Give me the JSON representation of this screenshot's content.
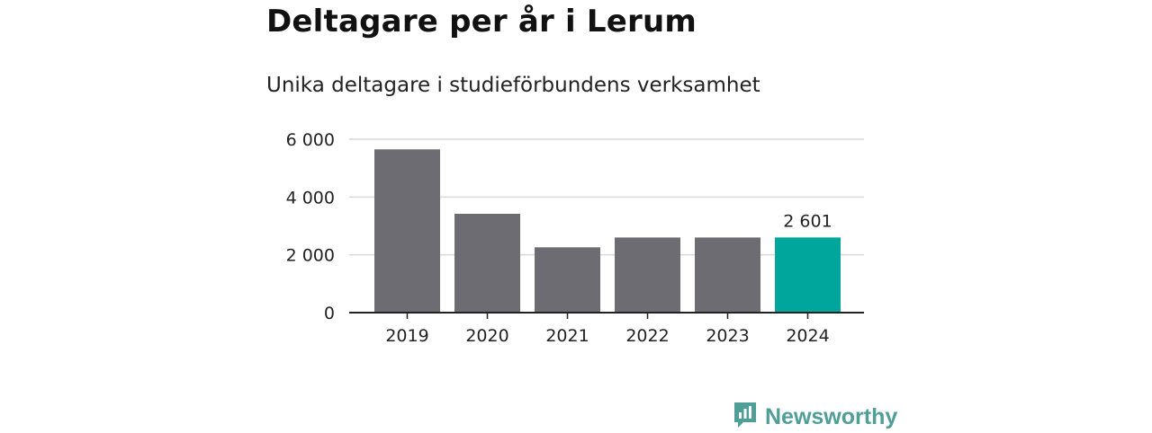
{
  "header": {
    "title": "Deltagare per år i Lerum",
    "subtitle": "Unika deltagare i studieförbundens verksamhet"
  },
  "chart_data": {
    "type": "bar",
    "categories": [
      "2019",
      "2020",
      "2021",
      "2022",
      "2023",
      "2024"
    ],
    "values": [
      5650,
      3420,
      2260,
      2600,
      2600,
      2601
    ],
    "ylim": [
      0,
      6000
    ],
    "yticks": [
      0,
      2000,
      4000,
      6000
    ],
    "ytick_labels": [
      "0",
      "2 000",
      "4 000",
      "6 000"
    ],
    "data_labels": [
      {
        "category": "2024",
        "label": "2 601"
      }
    ],
    "grid": true,
    "colors": {
      "default_bar": "#6d6c72",
      "highlight_bar": "#00a69c",
      "grid": "#d9d9d9",
      "axis": "#222222"
    },
    "highlight_category": "2024"
  },
  "brand": {
    "name": "Newsworthy",
    "icon": "newsworthy-logo-icon",
    "color": "#4f9e97"
  }
}
